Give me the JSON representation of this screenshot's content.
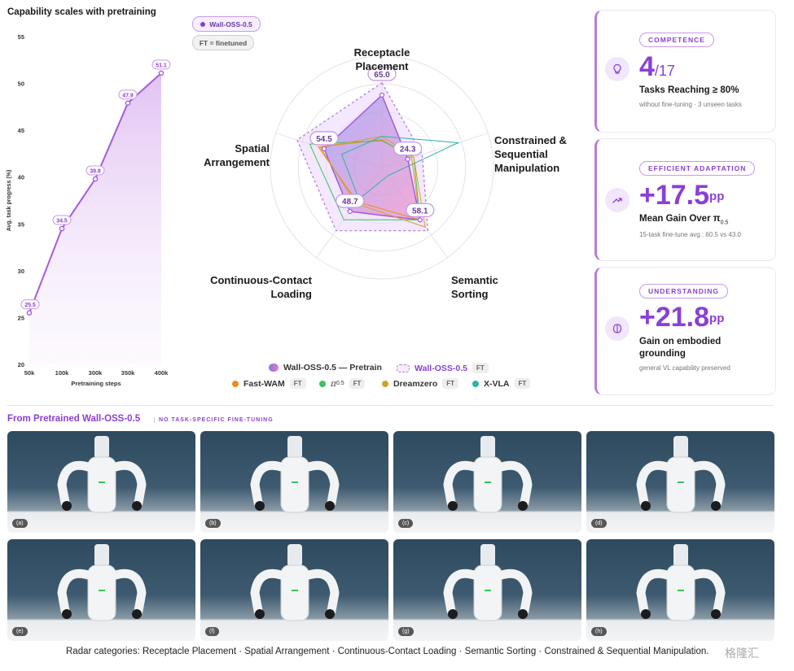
{
  "line_chart": {
    "title": "Capability scales with pretraining",
    "ylabel": "Avg. task progress (%)",
    "xlabel": "Pretraining steps",
    "yticks": [
      "55",
      "50",
      "45",
      "40",
      "35",
      "30",
      "25",
      "20"
    ],
    "xticks": [
      "50k",
      "100k",
      "300k",
      "350k",
      "400k"
    ]
  },
  "legend_pills": {
    "wall": "Wall-OSS-0.5",
    "ft": "FT = finetuned"
  },
  "radar": {
    "axes": {
      "receptacle": [
        "Receptacle",
        "Placement"
      ],
      "constrained": [
        "Constrained &",
        "Sequential",
        "Manipulation"
      ],
      "semantic": [
        "Semantic",
        "Sorting"
      ],
      "continuous": [
        "Continuous-Contact",
        "Loading"
      ],
      "spatial": [
        "Spatial",
        "Arrangement"
      ]
    },
    "value_labels": [
      "65.0",
      "24.3",
      "58.1",
      "48.7",
      "54.5"
    ]
  },
  "legend": {
    "pretrain": "Wall-OSS-0.5 — Pretrain",
    "wall_ft": "Wall-OSS-0.5",
    "fastwam": "Fast-WAM",
    "pi": "π",
    "pi_sub": "0.5",
    "dreamzero": "Dreamzero",
    "xvla": "X-VLA",
    "ft": "FT"
  },
  "cards": {
    "competence": {
      "badge": "COMPETENCE",
      "value": "4",
      "denom": "/17",
      "label": "Tasks Reaching ≥ 80%",
      "sub": "without fine-tuning · 3 unseen tasks"
    },
    "adaptation": {
      "badge": "EFFICIENT ADAPTATION",
      "value": "+17.5",
      "unit": "pp",
      "label": "Mean Gain Over π",
      "label_sub": "0.5",
      "sub": "15-task fine-tune avg.: 60.5 vs 43.0"
    },
    "understanding": {
      "badge": "UNDERSTANDING",
      "value": "+21.8",
      "unit": "pp",
      "label1": "Gain on embodied",
      "label2": "grounding",
      "sub": "general VL capability preserved"
    }
  },
  "section": {
    "title": "From Pretrained Wall-OSS-0.5",
    "subtitle": "NO TASK-SPECIFIC FINE-TUNING"
  },
  "photos": [
    "(a)",
    "(b)",
    "(c)",
    "(d)",
    "(e)",
    "(f)",
    "(g)",
    "(h)"
  ],
  "caption": "Radar categories: Receptacle Placement · Spatial Arrangement · Continuous-Contact Loading · Semantic Sorting · Constrained & Sequential Manipulation.",
  "watermark": "格隆汇",
  "colors": {
    "accent": "#8a3fd6",
    "fastwam": "#f08a1c",
    "pi": "#3cc25a",
    "dreamzero": "#d4a02a",
    "xvla": "#2ab3a8"
  },
  "chart_data": [
    {
      "type": "line",
      "title": "Capability scales with pretraining",
      "xlabel": "Pretraining steps",
      "ylabel": "Avg. task progress (%)",
      "ylim": [
        20,
        55
      ],
      "x": [
        "50k",
        "100k",
        "300k",
        "350k",
        "400k"
      ],
      "points": [
        {
          "x": "50k",
          "y": 25.5
        },
        {
          "x": "50k-100k",
          "y": 34.5
        },
        {
          "x": "100k-300k",
          "y": 39.8
        },
        {
          "x": "300k-350k",
          "y": 47.9
        },
        {
          "x": "400k",
          "y": 51.1
        }
      ],
      "labels": [
        "25.5",
        "34.5",
        "39.8",
        "47.9",
        "51.1"
      ]
    },
    {
      "type": "radar",
      "categories": [
        "Receptacle Placement",
        "Constrained & Sequential Manipulation",
        "Semantic Sorting",
        "Continuous-Contact Loading",
        "Spatial Arrangement"
      ],
      "range": [
        0,
        100
      ],
      "series": [
        {
          "name": "Wall-OSS-0.5 — Pretrain",
          "values": [
            65.0,
            24.3,
            58.1,
            48.7,
            54.5
          ]
        },
        {
          "name": "Wall-OSS-0.5",
          "values": [
            76,
            38,
            70,
            70,
            80
          ]
        },
        {
          "name": "Fast-WAM",
          "values": [
            25,
            28,
            58,
            38,
            60
          ]
        },
        {
          "name": "π0.5",
          "values": [
            24,
            30,
            58,
            58,
            68
          ]
        },
        {
          "name": "Dreamzero",
          "values": [
            28,
            30,
            66,
            40,
            58
          ]
        },
        {
          "name": "X-VLA",
          "values": [
            28,
            72,
            9,
            35,
            38
          ]
        }
      ]
    }
  ]
}
